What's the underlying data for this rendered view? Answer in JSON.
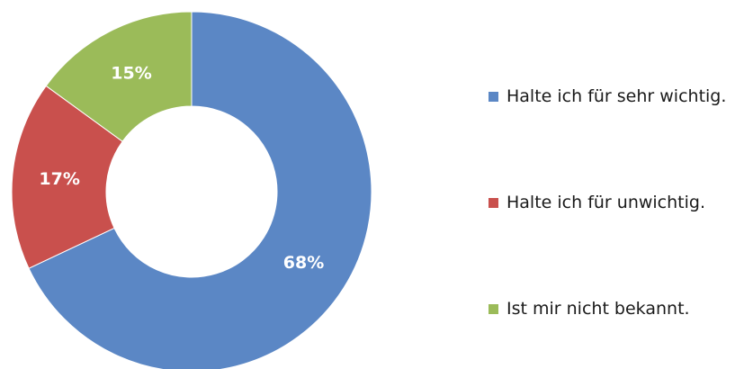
{
  "chart_data": {
    "type": "pie",
    "variant": "donut",
    "title": "",
    "categories": [
      "Halte ich für sehr wichtig.",
      "Halte ich für unwichtig.",
      "Ist mir nicht bekannt."
    ],
    "values": [
      68,
      17,
      15
    ],
    "data_labels": [
      "68%",
      "17%",
      "15%"
    ],
    "colors": [
      "#5b87c5",
      "#c9504d",
      "#9bbb59"
    ],
    "legend_position": "right",
    "start_angle_deg": 0,
    "direction": "clockwise"
  }
}
